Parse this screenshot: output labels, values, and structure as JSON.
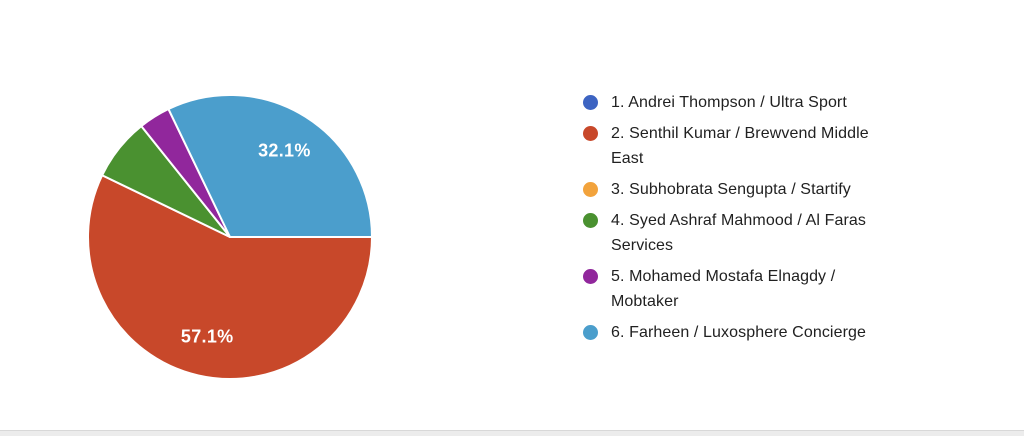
{
  "chart_data": {
    "type": "pie",
    "title": "",
    "legend_position": "right",
    "start_angle_deg": 0,
    "direction": "clockwise",
    "gap_stroke_color": "#ffffff",
    "label_text_color": "#ffffff",
    "legend_text_color": "#212121",
    "slices": [
      {
        "label": "1. Andrei Thompson / Ultra Sport",
        "legend_lines": [
          "1. Andrei Thompson / Ultra Sport"
        ],
        "value_pct": 0,
        "color": "#3D64C2",
        "data_label": null
      },
      {
        "label": "2. Senthil Kumar / Brewvend Middle East",
        "legend_lines": [
          "2. Senthil Kumar / Brewvend Middle",
          "East"
        ],
        "value_pct": 57.1,
        "color": "#C8482A",
        "data_label": "57.1%"
      },
      {
        "label": "3. Subhobrata Sengupta / Startify",
        "legend_lines": [
          "3. Subhobrata Sengupta / Startify"
        ],
        "value_pct": 0,
        "color": "#F2A33C",
        "data_label": null
      },
      {
        "label": "4. Syed Ashraf Mahmood / Al Faras Services",
        "legend_lines": [
          "4. Syed Ashraf Mahmood / Al Faras",
          "Services"
        ],
        "value_pct": 7.1,
        "color": "#4A9130",
        "data_label": null
      },
      {
        "label": "5. Mohamed Mostafa Elnagdy / Mobtaker",
        "legend_lines": [
          "5. Mohamed Mostafa Elnagdy /",
          "Mobtaker"
        ],
        "value_pct": 3.6,
        "color": "#91279C",
        "data_label": null
      },
      {
        "label": "6. Farheen / Luxosphere Concierge",
        "legend_lines": [
          "6. Farheen / Luxosphere Concierge"
        ],
        "value_pct": 32.1,
        "color": "#4B9ECC",
        "data_label": "32.1%"
      }
    ]
  }
}
